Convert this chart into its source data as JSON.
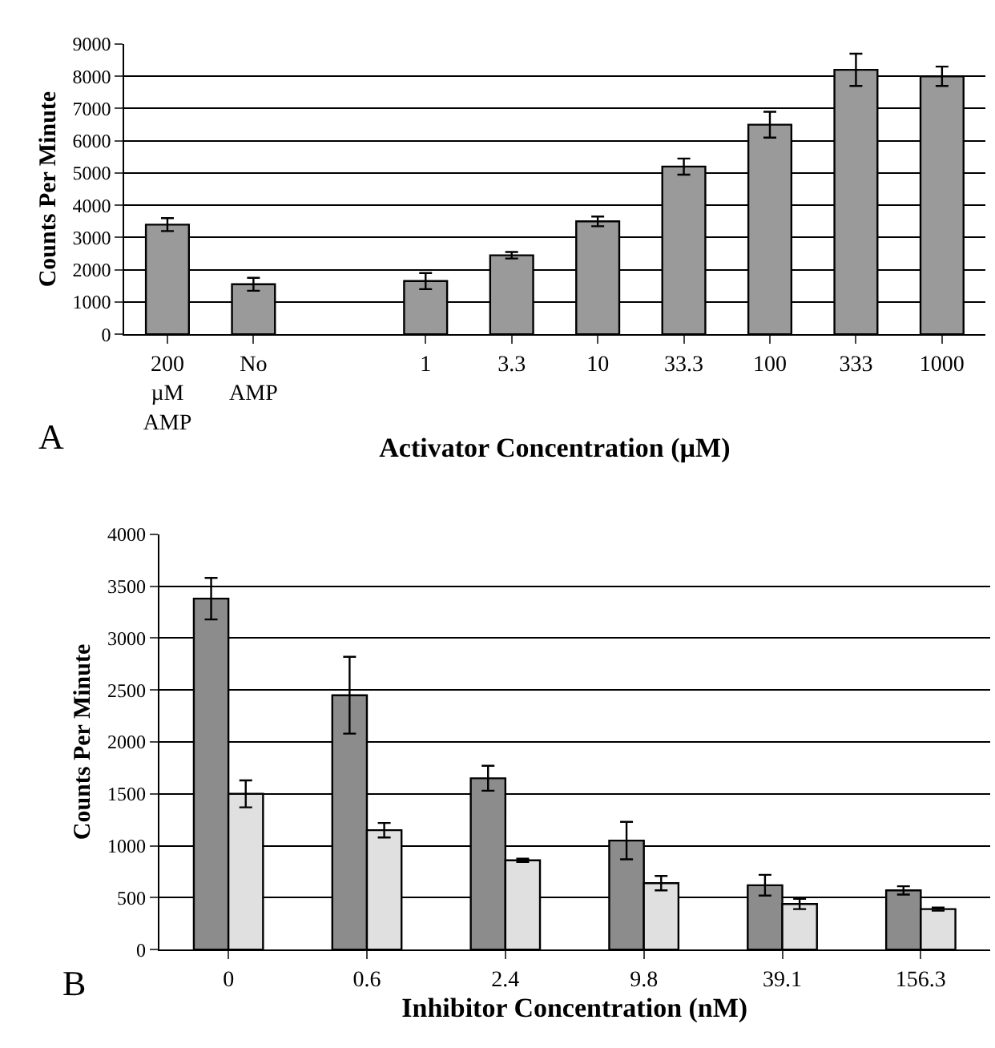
{
  "chart_data": [
    {
      "type": "bar",
      "categories": [
        "200\nµM\nAMP",
        "No\nAMP",
        null,
        "1",
        "3.3",
        "10",
        "33.3",
        "100",
        "333",
        "1000"
      ],
      "values": [
        3400,
        1550,
        null,
        1650,
        2450,
        3500,
        5200,
        6500,
        8200,
        8000
      ],
      "errors": [
        200,
        200,
        null,
        250,
        100,
        150,
        250,
        400,
        500,
        300
      ],
      "color": "#9a9a9a",
      "xlabel": "Activator Concentration (µM)",
      "ylabel": "Counts Per Minute",
      "ylim": [
        0,
        9000
      ],
      "yticks": [
        0,
        1000,
        2000,
        3000,
        4000,
        5000,
        6000,
        7000,
        8000,
        9000
      ],
      "grid": "y",
      "annotations": [
        "A"
      ]
    },
    {
      "type": "bar",
      "categories": [
        "0",
        "0.6",
        "2.4",
        "9.8",
        "39.1",
        "156.3"
      ],
      "series": [
        {
          "color": "#8c8c8c",
          "values": [
            3380,
            2450,
            1650,
            1050,
            620,
            570
          ],
          "errors": [
            200,
            370,
            120,
            180,
            100,
            40
          ]
        },
        {
          "color": "#e0e0e0",
          "values": [
            1500,
            1150,
            860,
            640,
            440,
            390
          ],
          "errors": [
            130,
            70,
            15,
            70,
            50,
            15
          ]
        }
      ],
      "xlabel": "Inhibitor Concentration (nM)",
      "ylabel": "Counts Per Minute",
      "ylim": [
        0,
        4000
      ],
      "yticks": [
        0,
        500,
        1000,
        1500,
        2000,
        2500,
        3000,
        3500,
        4000
      ],
      "grid": "y",
      "annotations": [
        "B"
      ]
    }
  ]
}
